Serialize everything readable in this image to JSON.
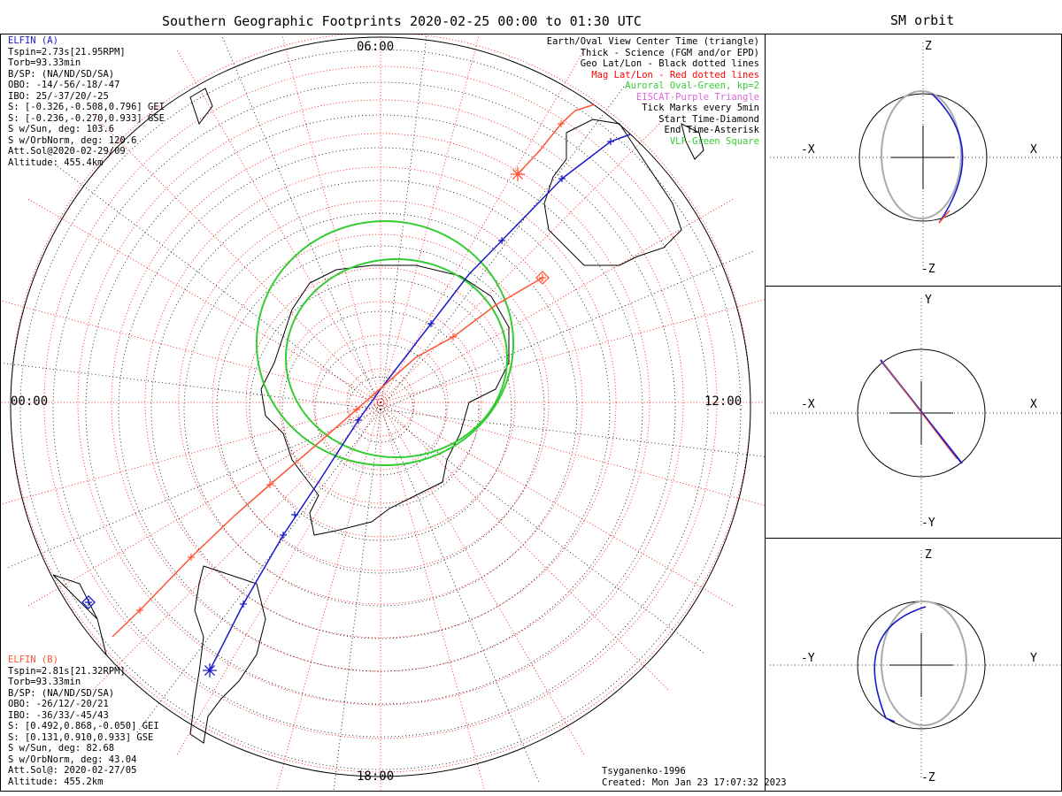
{
  "title": "Southern Geographic Footprints 2020-02-25 00:00 to 01:30 UTC",
  "sm_title": "SM orbit",
  "map_labels": {
    "top": "06:00",
    "left": "00:00",
    "right": "12:00",
    "bottom": "18:00"
  },
  "legend": [
    {
      "text": "Earth/Oval View Center Time (triangle)",
      "color": "#000000"
    },
    {
      "text": "Thick - Science (FGM and/or EPD)",
      "color": "#000000"
    },
    {
      "text": "Geo Lat/Lon - Black dotted lines",
      "color": "#000000"
    },
    {
      "text": "Mag Lat/Lon - Red dotted lines",
      "color": "#ff0000"
    },
    {
      "text": "Auroral Oval-Green, kp=2",
      "color": "#33cc33"
    },
    {
      "text": "EISCAT-Purple Triangle",
      "color": "#dd66dd"
    },
    {
      "text": "Tick Marks every 5min",
      "color": "#000000"
    },
    {
      "text": "Start Time-Diamond",
      "color": "#000000"
    },
    {
      "text": "End Time-Asterisk",
      "color": "#000000"
    },
    {
      "text": "VLF-Green Square",
      "color": "#33cc33"
    }
  ],
  "elfin_a": {
    "name": "ELFIN (A)",
    "color": "#1a1acc",
    "lines": [
      "Tspin=2.73s[21.95RPM]",
      "Torb=93.33min",
      "B/SP: (NA/ND/SD/SA)",
      "OBO: -14/-56/-18/-47",
      "IBO: 25/-37/20/-25",
      "S: [-0.326,-0.508,0.796] GEI",
      "S: [-0.236,-0.270,0.933] GSE",
      "S w/Sun, deg: 103.6",
      "S w/OrbNorm, deg: 120.6",
      "Att.Sol@2020-02-29/09",
      "Altitude: 455.4km"
    ]
  },
  "elfin_b": {
    "name": "ELFIN (B)",
    "color": "#ff5533",
    "lines": [
      "Tspin=2.81s[21.32RPM]",
      "Torb=93.33min",
      "B/SP: (NA/ND/SD/SA)",
      "OBO: -26/12/-20/21",
      "IBO: -36/33/-45/43",
      "S: [0.492,0.868,-0.050] GEI",
      "S: [0.131,0.910,0.933] GSE",
      "S w/Sun, deg: 82.68",
      "S w/OrbNorm, deg: 43.04",
      "Att.Sol@: 2020-02-27/05",
      "Altitude: 455.2km"
    ]
  },
  "footer": {
    "model": "Tsyganenko-1996",
    "created": "Created: Mon Jan 23 17:07:32 2023"
  },
  "panels": [
    {
      "top": "Z",
      "bottom": "-Z",
      "left": "-X",
      "right": "X"
    },
    {
      "top": "Y",
      "bottom": "-Y",
      "left": "-X",
      "right": "X"
    },
    {
      "top": "Z",
      "bottom": "-Z",
      "left": "-Y",
      "right": "Y"
    }
  ],
  "colors": {
    "geo_grid": "#000000",
    "mag_grid": "#ff0000",
    "oval": "#33cc33",
    "orbit_gray": "#aaaaaa"
  }
}
